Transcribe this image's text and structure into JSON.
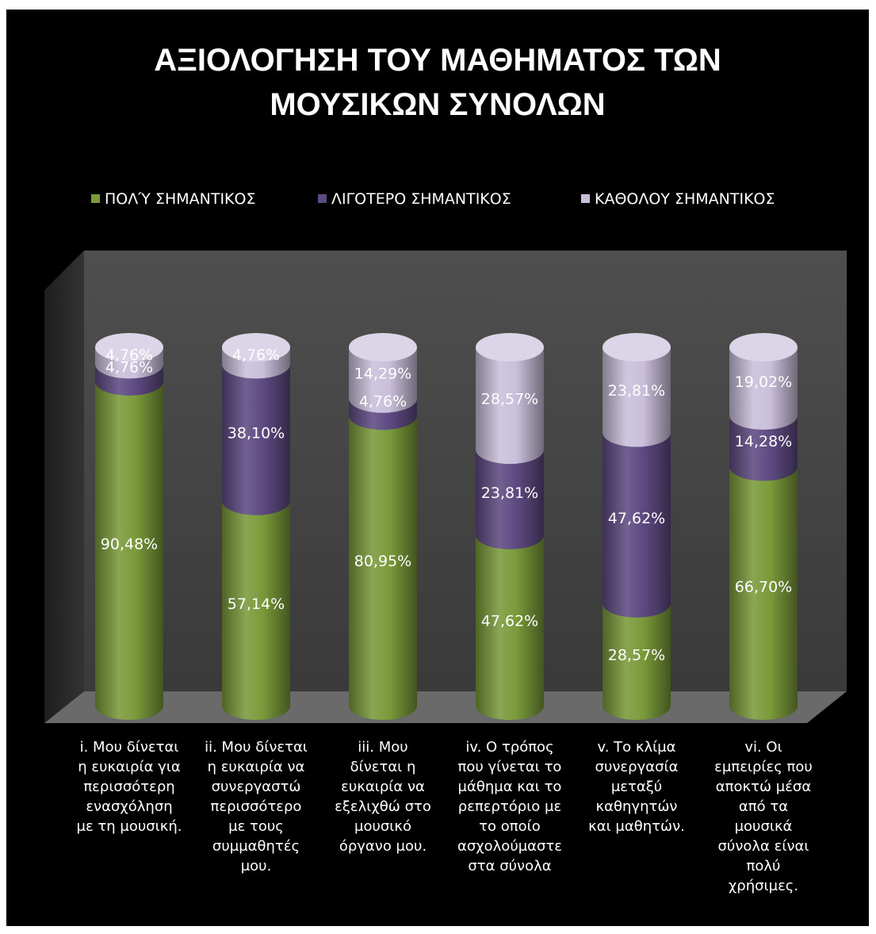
{
  "chart_data": {
    "type": "bar",
    "stacked": true,
    "style": "3d-cylinder",
    "title_lines": [
      "ΑΞΙΟΛΟΓΗΣΗ ΤΟΥ ΜΑΘΗΜΑΤΟΣ ΤΩΝ",
      "ΜΟΥΣΙΚΩΝ ΣΥΝΟΛΩΝ"
    ],
    "legend_position": "top",
    "ylim": [
      0,
      100
    ],
    "categories": [
      [
        "i. Μου δίνεται",
        "η ευκαιρία για",
        "περισσότερη",
        "ενασχόληση",
        "με τη μουσική."
      ],
      [
        "ii. Μου δίνεται",
        "η ευκαιρία να",
        "συνεργαστώ",
        "περισσότερο",
        "με τους",
        "συμμαθητές",
        "μου."
      ],
      [
        "iii. Μου",
        "δίνεται η",
        "ευκαιρία να",
        "εξελιχθώ στο",
        "μουσικό",
        "όργανο μου."
      ],
      [
        "iv. Ο τρόπος",
        "που γίνεται το",
        "μάθημα και το",
        "ρεπερτόριο με",
        "το οποίο",
        "ασχολούμαστε",
        "στα σύνολα"
      ],
      [
        "v. Το κλίμα",
        "συνεργασία",
        "μεταξύ",
        "καθηγητών",
        "και μαθητών."
      ],
      [
        "vi. Οι",
        "εμπειρίες που",
        "αποκτώ μέσα",
        "από τα",
        "μουσικά",
        "σύνολα είναι",
        "πολύ",
        "χρήσιμες."
      ]
    ],
    "series": [
      {
        "name": "ΠΟΛΎ ΣΗΜΑΝΤΙΚΟΣ",
        "color": "#7a9a3a",
        "values": [
          90.48,
          57.14,
          80.95,
          47.62,
          28.57,
          66.7
        ],
        "labels": [
          "90,48%",
          "57,14%",
          "80,95%",
          "47,62%",
          "28,57%",
          "66,70%"
        ]
      },
      {
        "name": "ΛΙΓΟΤΕΡΟ ΣΗΜΑΝΤΙΚΟΣ",
        "color": "#5e4a82",
        "values": [
          4.76,
          38.1,
          4.76,
          23.81,
          47.62,
          14.28
        ],
        "labels": [
          "4,76%",
          "38,10%",
          "4,76%",
          "23,81%",
          "47,62%",
          "14,28%"
        ]
      },
      {
        "name": "ΚΑΘΟΛΟΥ ΣΗΜΑΝΤΙΚΟΣ",
        "color": "#c9bfdb",
        "values": [
          4.76,
          4.76,
          14.29,
          28.57,
          23.81,
          19.02
        ],
        "labels": [
          "4,76%",
          "4,76%",
          "14,29%",
          "28,57%",
          "23,81%",
          "19,02%"
        ]
      }
    ]
  }
}
